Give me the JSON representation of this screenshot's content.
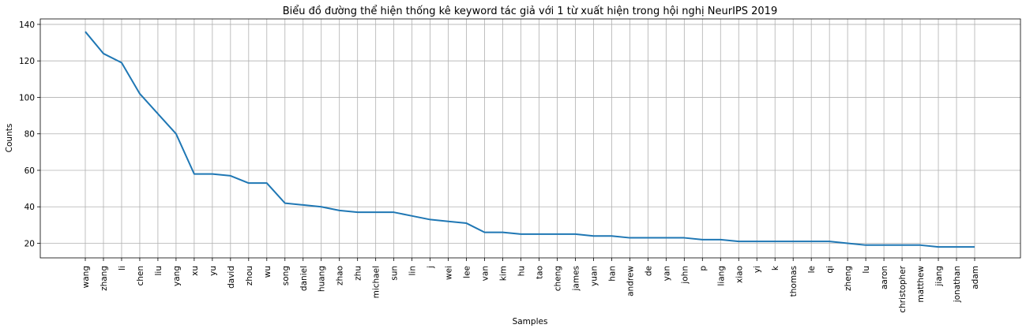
{
  "chart_data": {
    "type": "line",
    "title": "Biểu đồ đường thể hiện thống kê keyword tác giả với 1 từ xuất hiện trong hội nghị NeurIPS 2019",
    "xlabel": "Samples",
    "ylabel": "Counts",
    "categories": [
      "wang",
      "zhang",
      "li",
      "chen",
      "liu",
      "yang",
      "xu",
      "yu",
      "david",
      "zhou",
      "wu",
      "song",
      "daniel",
      "huang",
      "zhao",
      "zhu",
      "michael",
      "sun",
      "lin",
      "j",
      "wei",
      "lee",
      "van",
      "kim",
      "hu",
      "tao",
      "cheng",
      "james",
      "yuan",
      "han",
      "andrew",
      "de",
      "yan",
      "john",
      "p",
      "liang",
      "xiao",
      "yi",
      "k",
      "thomas",
      "le",
      "qi",
      "zheng",
      "lu",
      "aaron",
      "christopher",
      "matthew",
      "jiang",
      "jonathan",
      "adam"
    ],
    "values": [
      136,
      124,
      119,
      102,
      91,
      80,
      58,
      58,
      57,
      53,
      53,
      42,
      41,
      40,
      38,
      37,
      37,
      37,
      35,
      33,
      32,
      31,
      26,
      26,
      25,
      25,
      25,
      25,
      24,
      24,
      23,
      23,
      23,
      23,
      22,
      22,
      21,
      21,
      21,
      21,
      21,
      21,
      20,
      19,
      19,
      19,
      19,
      18,
      18,
      18
    ],
    "yticks": [
      20,
      40,
      60,
      80,
      100,
      120,
      140
    ],
    "ylim": [
      12,
      143
    ],
    "grid": true,
    "color": "#1f77b4"
  }
}
